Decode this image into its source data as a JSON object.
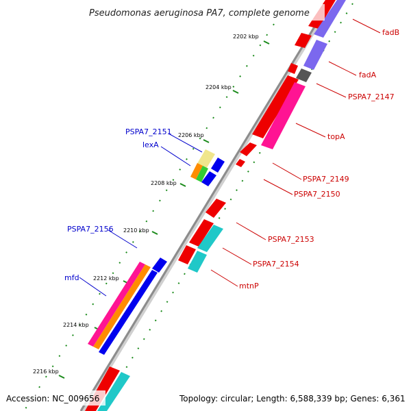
{
  "title": "Pseudomonas aeruginosa PA7, complete genome",
  "footer": {
    "accession": "Accession: NC_009656",
    "topology": "Topology: circular; Length: 6,588,339 bp; Genes: 6,361"
  },
  "colors": {
    "backbone": "#8c8c8c",
    "forward_gene_label": "#cc0000",
    "reverse_gene_label": "#0000cc",
    "tick": "#1a8a1a",
    "red": "#ee0000",
    "blue": "#0000ee",
    "purple": "#7b68ee",
    "pink": "#ff1493",
    "gray": "#555555",
    "cyan": "#20c8c8",
    "orange": "#ff8c00",
    "green": "#33cc33",
    "khaki": "#f0e68c"
  },
  "ticks": [
    "2202 kbp",
    "2204 kbp",
    "2206 kbp",
    "2208 kbp",
    "2210 kbp",
    "2212 kbp",
    "2214 kbp",
    "2216 kbp"
  ],
  "labels_right": [
    "fadB",
    "fadA",
    "PSPA7_2147",
    "topA",
    "PSPA7_2149",
    "PSPA7_2150",
    "PSPA7_2153",
    "PSPA7_2154",
    "mtnP"
  ],
  "labels_left": [
    "PSPA7_2151",
    "lexA",
    "PSPA7_2156",
    "mfd"
  ]
}
